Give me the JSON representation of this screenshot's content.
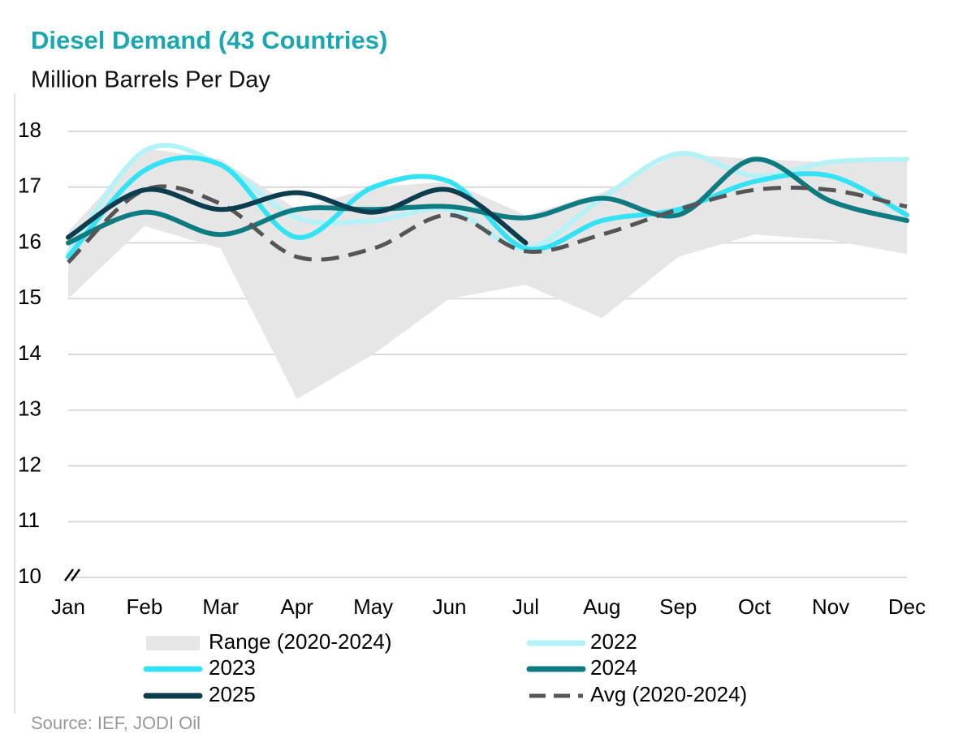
{
  "chart_data": {
    "type": "line",
    "title": "Diesel Demand (43 Countries)",
    "subtitle": "Million Barrels Per Day",
    "source": "Source: IEF, JODI Oil",
    "categories": [
      "Jan",
      "Feb",
      "Mar",
      "Apr",
      "May",
      "Jun",
      "Jul",
      "Aug",
      "Sep",
      "Oct",
      "Nov",
      "Dec"
    ],
    "ylim": [
      10,
      18
    ],
    "yticks": [
      10,
      11,
      12,
      13,
      14,
      15,
      16,
      17,
      18
    ],
    "grid": true,
    "range": {
      "name": "Range (2020-2024)",
      "color": "#e6e6e6",
      "low": [
        15.0,
        16.3,
        15.9,
        13.2,
        14.0,
        15.0,
        15.25,
        14.65,
        15.75,
        16.15,
        16.05,
        15.8
      ],
      "high": [
        16.2,
        17.7,
        17.5,
        16.6,
        17.0,
        17.1,
        16.5,
        16.9,
        17.6,
        17.5,
        17.45,
        17.5
      ]
    },
    "series": [
      {
        "name": "2022",
        "color": "#b3f2f7",
        "values": [
          15.8,
          17.65,
          17.4,
          16.45,
          16.4,
          16.6,
          15.9,
          16.8,
          17.6,
          17.2,
          17.45,
          17.5
        ]
      },
      {
        "name": "2023",
        "color": "#33e3f5",
        "values": [
          15.75,
          17.3,
          17.4,
          16.1,
          17.0,
          17.1,
          15.9,
          16.4,
          16.6,
          17.1,
          17.2,
          16.5
        ]
      },
      {
        "name": "2024",
        "color": "#0d7b80",
        "values": [
          16.0,
          16.55,
          16.15,
          16.6,
          16.6,
          16.65,
          16.45,
          16.8,
          16.5,
          17.5,
          16.75,
          16.4
        ]
      },
      {
        "name": "2025",
        "color": "#0b3d4f",
        "values": [
          16.1,
          16.95,
          16.6,
          16.9,
          16.55,
          16.95,
          16.0,
          null,
          null,
          null,
          null,
          null
        ]
      },
      {
        "name": "Avg (2020-2024)",
        "color": "#555555",
        "dashed": true,
        "values": [
          15.65,
          16.95,
          16.7,
          15.75,
          15.9,
          16.5,
          15.85,
          16.15,
          16.6,
          16.95,
          16.95,
          16.65
        ]
      }
    ]
  }
}
